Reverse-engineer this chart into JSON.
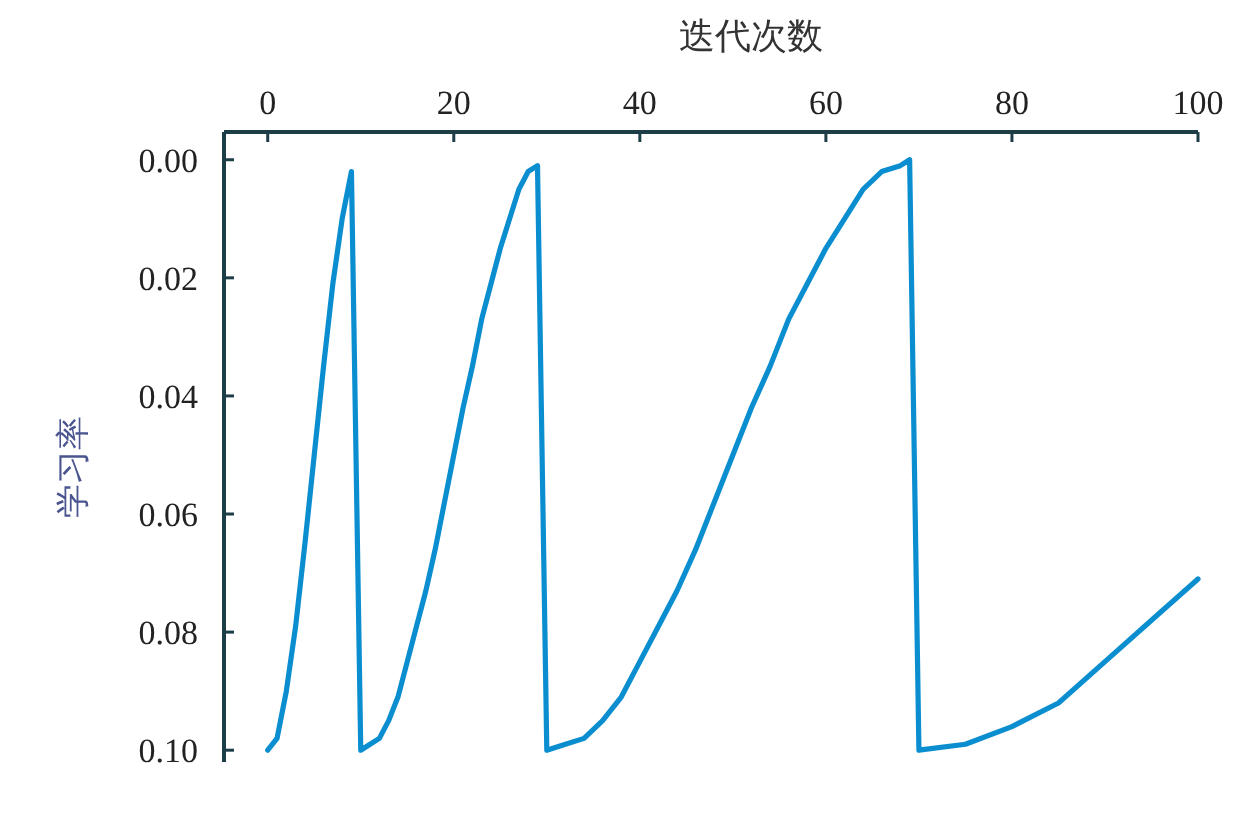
{
  "chart_data": {
    "type": "line",
    "xlabel": "迭代次数",
    "ylabel": "学习率",
    "color": "#0b8ed0",
    "xlim": [
      -4.7,
      100
    ],
    "ylim": [
      0.102,
      -0.0047
    ],
    "xticks": [
      0,
      20,
      40,
      60,
      80,
      100
    ],
    "yticks": [
      {
        "value": 0,
        "label": "0.00"
      },
      {
        "value": 0.02,
        "label": "0.02"
      },
      {
        "value": 0.04,
        "label": "0.04"
      },
      {
        "value": 0.06,
        "label": "0.06"
      },
      {
        "value": 0.08,
        "label": "0.08"
      },
      {
        "value": 0.1,
        "label": "0.10"
      }
    ],
    "x": [
      0,
      1,
      2,
      3,
      4,
      5,
      6,
      7,
      8,
      9,
      10,
      11,
      12,
      13,
      14,
      15,
      16,
      17,
      18,
      19,
      20,
      21,
      22,
      23,
      24,
      25,
      26,
      27,
      28,
      29,
      30,
      32,
      34,
      36,
      38,
      40,
      42,
      44,
      46,
      48,
      50,
      52,
      54,
      56,
      58,
      60,
      62,
      64,
      66,
      68,
      69,
      70,
      75,
      80,
      85,
      90,
      95,
      100
    ],
    "values": [
      0.1,
      0.098,
      0.09,
      0.079,
      0.065,
      0.05,
      0.035,
      0.021,
      0.01,
      0.002,
      0.1,
      0.099,
      0.098,
      0.095,
      0.091,
      0.085,
      0.079,
      0.073,
      0.066,
      0.058,
      0.05,
      0.042,
      0.035,
      0.027,
      0.021,
      0.015,
      0.01,
      0.005,
      0.002,
      0.001,
      0.1,
      0.099,
      0.098,
      0.095,
      0.091,
      0.085,
      0.079,
      0.073,
      0.066,
      0.058,
      0.05,
      0.042,
      0.035,
      0.027,
      0.021,
      0.015,
      0.01,
      0.005,
      0.002,
      0.001,
      0.0,
      0.1,
      0.099,
      0.096,
      0.092,
      0.085,
      0.078,
      0.071
    ]
  }
}
